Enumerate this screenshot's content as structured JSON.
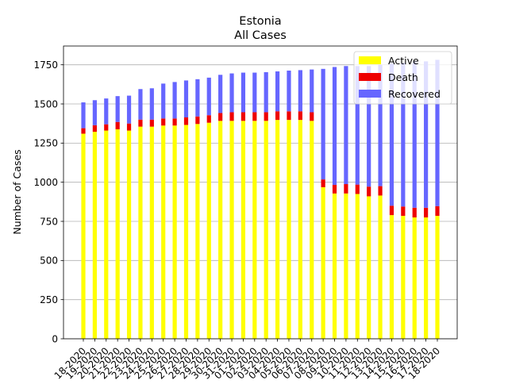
{
  "chart_data": {
    "type": "bar",
    "title": "Estonia",
    "subtitle": "All Cases",
    "ylabel": "Number of Cases",
    "xlabel": "",
    "ylim": [
      0,
      1870
    ],
    "yticks": [
      0,
      250,
      500,
      750,
      1000,
      1250,
      1500,
      1750
    ],
    "grid": "y",
    "legend_position": "top-right",
    "categories": [
      "18-2020",
      "19-2020",
      "20-2020",
      "21-2020",
      "22-2020",
      "23-2020",
      "24-2020",
      "25-2020",
      "26-2020",
      "27-2020",
      "28-2020",
      "29-2020",
      "30-2020",
      "31-2020",
      "01-2020",
      "02-2020",
      "03-2020",
      "04-2020",
      "05-2020",
      "06-2020",
      "07-2020",
      "08-2020",
      "09-2020",
      "10-2020",
      "11-2020",
      "12-2020",
      "13-2020",
      "14-2020",
      "15-2020",
      "16-2020",
      "17-2020",
      "18-2020"
    ],
    "series": [
      {
        "name": "Active",
        "color": "#ffff00",
        "values": [
          1310,
          1322,
          1330,
          1338,
          1330,
          1355,
          1355,
          1362,
          1362,
          1366,
          1372,
          1380,
          1392,
          1392,
          1392,
          1392,
          1392,
          1398,
          1398,
          1398,
          1392,
          968,
          928,
          928,
          925,
          910,
          915,
          790,
          785,
          775,
          775,
          785
        ]
      },
      {
        "name": "Death",
        "color": "#ee0000",
        "values": [
          35,
          42,
          40,
          47,
          45,
          45,
          45,
          45,
          45,
          48,
          48,
          48,
          50,
          55,
          55,
          55,
          55,
          55,
          55,
          55,
          55,
          50,
          55,
          60,
          60,
          62,
          60,
          60,
          60,
          62,
          62,
          62
        ]
      },
      {
        "name": "Recovered",
        "color": "#6666ff",
        "values": [
          165,
          160,
          165,
          165,
          178,
          195,
          200,
          223,
          233,
          236,
          238,
          240,
          244,
          248,
          253,
          253,
          256,
          255,
          260,
          263,
          273,
          706,
          753,
          754,
          757,
          770,
          775,
          912,
          918,
          935,
          935,
          935
        ]
      }
    ]
  }
}
